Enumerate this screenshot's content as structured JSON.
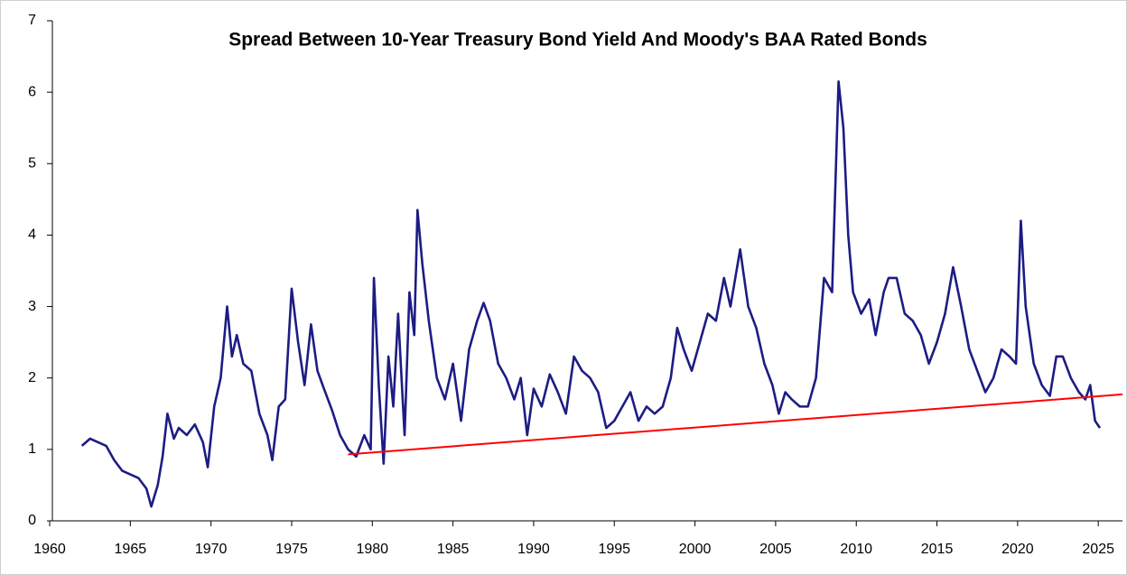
{
  "chart_data": {
    "type": "line",
    "title": "Spread Between 10-Year Treasury Bond Yield And Moody's BAA Rated Bonds",
    "xlim": [
      1960,
      2026.5
    ],
    "ylim": [
      0,
      7
    ],
    "xticks": [
      1960,
      1965,
      1970,
      1975,
      1980,
      1985,
      1990,
      1995,
      2000,
      2005,
      2010,
      2015,
      2020,
      2025
    ],
    "yticks": [
      0,
      1,
      2,
      3,
      4,
      5,
      6,
      7
    ],
    "grid": false,
    "series": [
      {
        "color": "#1c1c84",
        "x": [
          1962.0,
          1962.5,
          1963,
          1963.5,
          1964,
          1964.5,
          1965,
          1965.5,
          1966,
          1966.3,
          1966.7,
          1967,
          1967.3,
          1967.7,
          1968,
          1968.5,
          1969,
          1969.5,
          1969.8,
          1970.2,
          1970.6,
          1971,
          1971.3,
          1971.6,
          1972,
          1972.5,
          1973,
          1973.5,
          1973.8,
          1974.2,
          1974.6,
          1975,
          1975.4,
          1975.8,
          1976.2,
          1976.6,
          1977,
          1977.5,
          1978,
          1978.5,
          1979,
          1979.5,
          1979.9,
          1980.1,
          1980.4,
          1980.7,
          1981,
          1981.3,
          1981.6,
          1982,
          1982.3,
          1982.6,
          1982.8,
          1983.1,
          1983.5,
          1984,
          1984.5,
          1985,
          1985.5,
          1986,
          1986.5,
          1986.9,
          1987.3,
          1987.8,
          1988.3,
          1988.8,
          1989.2,
          1989.6,
          1990,
          1990.5,
          1991,
          1991.5,
          1992,
          1992.5,
          1993,
          1993.5,
          1994,
          1994.5,
          1995,
          1995.5,
          1996,
          1996.5,
          1997,
          1997.5,
          1998,
          1998.5,
          1998.9,
          1999.3,
          1999.8,
          2000.3,
          2000.8,
          2001.3,
          2001.8,
          2002.2,
          2002.8,
          2003.3,
          2003.8,
          2004.3,
          2004.8,
          2005.2,
          2005.6,
          2006,
          2006.5,
          2007,
          2007.5,
          2008,
          2008.5,
          2008.9,
          2009.2,
          2009.5,
          2009.8,
          2010.3,
          2010.8,
          2011.2,
          2011.7,
          2012,
          2012.5,
          2013,
          2013.5,
          2014,
          2014.5,
          2015,
          2015.5,
          2016,
          2016.5,
          2017,
          2017.5,
          2018,
          2018.5,
          2019,
          2019.5,
          2019.9,
          2020.2,
          2020.5,
          2021,
          2021.5,
          2022,
          2022.4,
          2022.8,
          2023.3,
          2023.8,
          2024.2,
          2024.5,
          2024.8,
          2025.1
        ],
        "values": [
          1.05,
          1.15,
          1.1,
          1.05,
          0.85,
          0.7,
          0.65,
          0.6,
          0.45,
          0.2,
          0.5,
          0.9,
          1.5,
          1.15,
          1.3,
          1.2,
          1.35,
          1.1,
          0.75,
          1.6,
          2.0,
          3.0,
          2.3,
          2.6,
          2.2,
          2.1,
          1.5,
          1.2,
          0.85,
          1.6,
          1.7,
          3.25,
          2.5,
          1.9,
          2.75,
          2.1,
          1.85,
          1.55,
          1.2,
          1.0,
          0.9,
          1.2,
          1.0,
          3.4,
          1.9,
          0.8,
          2.3,
          1.6,
          2.9,
          1.2,
          3.2,
          2.6,
          4.35,
          3.6,
          2.8,
          2.0,
          1.7,
          2.2,
          1.4,
          2.4,
          2.8,
          3.05,
          2.8,
          2.2,
          2.0,
          1.7,
          2.0,
          1.2,
          1.85,
          1.6,
          2.05,
          1.8,
          1.5,
          2.3,
          2.1,
          2.0,
          1.8,
          1.3,
          1.4,
          1.6,
          1.8,
          1.4,
          1.6,
          1.5,
          1.6,
          2.0,
          2.7,
          2.4,
          2.1,
          2.5,
          2.9,
          2.8,
          3.4,
          3.0,
          3.8,
          3.0,
          2.7,
          2.2,
          1.9,
          1.5,
          1.8,
          1.7,
          1.6,
          1.6,
          2.0,
          3.4,
          3.2,
          6.15,
          5.5,
          4.0,
          3.2,
          2.9,
          3.1,
          2.6,
          3.2,
          3.4,
          3.4,
          2.9,
          2.8,
          2.6,
          2.2,
          2.5,
          2.9,
          3.55,
          3.0,
          2.4,
          2.1,
          1.8,
          2.0,
          2.4,
          2.3,
          2.2,
          4.2,
          3.0,
          2.2,
          1.9,
          1.75,
          2.3,
          2.3,
          2.0,
          1.8,
          1.7,
          1.9,
          1.4,
          1.3
        ]
      },
      {
        "color": "#ff0000",
        "x": [
          1978.5,
          2026.5
        ],
        "values": [
          0.93,
          1.77
        ]
      }
    ]
  }
}
